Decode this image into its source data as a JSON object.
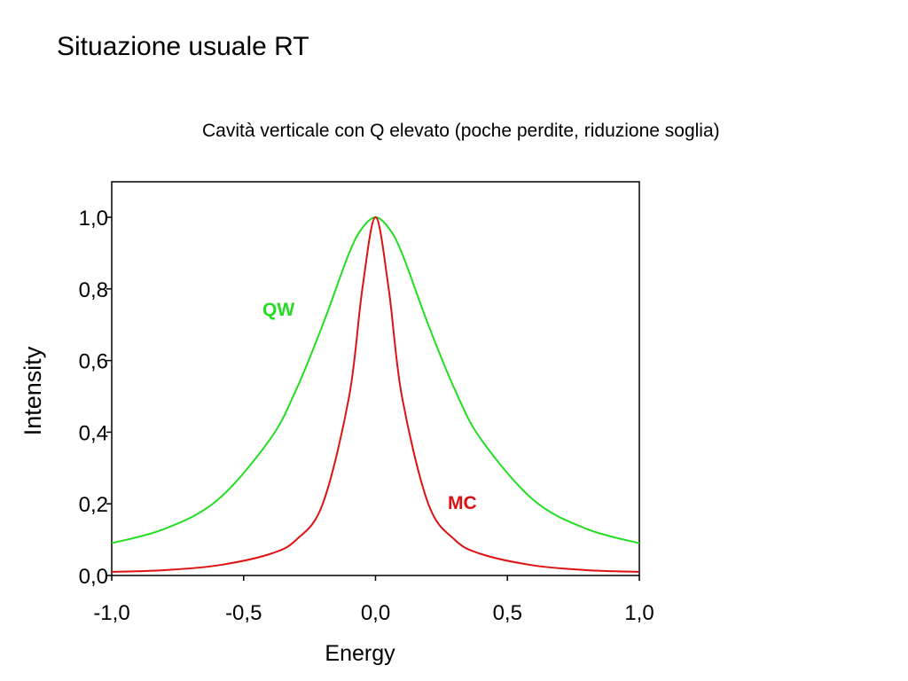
{
  "slide": {
    "title": "Situazione usuale RT",
    "subtitle": "Cavità verticale con Q elevato (poche perdite, riduzione soglia)"
  },
  "chart_data": {
    "type": "line",
    "xlabel": "Energy",
    "ylabel": "Intensity",
    "xlim": [
      -1.0,
      1.0
    ],
    "ylim": [
      0.0,
      1.0
    ],
    "x_ticks": [
      "-1,0",
      "-0,5",
      "0,0",
      "0,5",
      "1,0"
    ],
    "y_ticks": [
      "0,0",
      "0,2",
      "0,4",
      "0,6",
      "0,8",
      "1,0"
    ],
    "grid": false,
    "x": [
      -1.0,
      -0.8,
      -0.6,
      -0.4,
      -0.3,
      -0.2,
      -0.1,
      -0.05,
      0.0,
      0.05,
      0.1,
      0.2,
      0.3,
      0.4,
      0.6,
      0.8,
      1.0
    ],
    "series": [
      {
        "name": "QW",
        "color": "#22dd22",
        "values": [
          0.09,
          0.13,
          0.21,
          0.38,
          0.52,
          0.7,
          0.9,
          0.97,
          1.0,
          0.97,
          0.9,
          0.7,
          0.52,
          0.38,
          0.21,
          0.13,
          0.09
        ]
      },
      {
        "name": "MC",
        "color": "#dd1111",
        "values": [
          0.01,
          0.015,
          0.028,
          0.06,
          0.1,
          0.2,
          0.5,
          0.8,
          1.0,
          0.8,
          0.5,
          0.2,
          0.1,
          0.06,
          0.028,
          0.015,
          0.01
        ]
      }
    ]
  }
}
